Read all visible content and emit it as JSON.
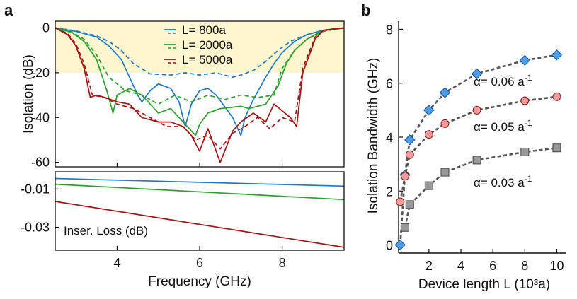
{
  "panels": {
    "a_label": "a",
    "b_label": "b"
  },
  "chart_data": [
    {
      "id": "isolation",
      "type": "line",
      "panel": "a",
      "ylabel": "Isolation (dB)",
      "xlim": [
        2.5,
        9.5
      ],
      "ylim": [
        -62,
        3
      ],
      "yticks": [
        0,
        -20,
        -40,
        -60
      ],
      "yticklabels": [
        "0",
        "-20",
        "-40",
        "-60"
      ],
      "shaded_band": [
        -20,
        3
      ],
      "shaded_color": "#fdf6cf",
      "legend": {
        "position": "top-center",
        "entries": [
          {
            "label": "L= 800a",
            "color": "#1f77c8"
          },
          {
            "label": "L= 2000a",
            "color": "#2ca02c"
          },
          {
            "label": "L= 5000a",
            "color": "#a31515"
          }
        ]
      },
      "series": [
        {
          "name": "L= 800a",
          "style": "solid",
          "color": "#1f77c8",
          "x": [
            2.5,
            3.0,
            3.5,
            3.8,
            4.1,
            4.3,
            4.5,
            4.6,
            4.8,
            5.0,
            5.3,
            5.5,
            5.65,
            5.8,
            6.0,
            6.2,
            6.4,
            6.6,
            6.8,
            7.0,
            7.1,
            7.3,
            7.6,
            7.8,
            8.0,
            8.3,
            8.6,
            9.0,
            9.3,
            9.5
          ],
          "y": [
            0,
            -1.5,
            -4,
            -8,
            -14,
            -22,
            -30,
            -33,
            -28,
            -25,
            -27,
            -33,
            -44,
            -34,
            -28,
            -27,
            -30,
            -35,
            -40,
            -48,
            -40,
            -32,
            -22,
            -16,
            -11,
            -6,
            -3,
            -1,
            -0.3,
            0
          ]
        },
        {
          "name": "L= 800a (dashed)",
          "style": "dashed",
          "color": "#1f77c8",
          "x": [
            2.5,
            3.0,
            3.5,
            3.8,
            4.1,
            4.4,
            4.8,
            5.3,
            5.65,
            6.0,
            6.4,
            6.8,
            7.0,
            7.3,
            7.6,
            7.9,
            8.2,
            8.6,
            9.0,
            9.5
          ],
          "y": [
            0,
            -1.3,
            -3.5,
            -6,
            -10,
            -16,
            -20.5,
            -21,
            -20,
            -21,
            -20,
            -22,
            -21,
            -19,
            -15,
            -10,
            -6,
            -3,
            -1,
            0
          ]
        },
        {
          "name": "L= 2000a",
          "style": "solid",
          "color": "#2ca02c",
          "x": [
            2.5,
            2.9,
            3.2,
            3.5,
            3.75,
            3.9,
            4.0,
            4.3,
            4.6,
            5.0,
            5.3,
            5.6,
            5.9,
            6.0,
            6.2,
            6.5,
            7.0,
            7.2,
            7.6,
            7.9,
            8.1,
            8.3,
            8.6,
            8.9,
            9.2,
            9.5
          ],
          "y": [
            0,
            -2,
            -6,
            -14,
            -28,
            -38,
            -30,
            -27,
            -30,
            -38,
            -36,
            -42,
            -48,
            -43,
            -38,
            -36,
            -35,
            -36,
            -34,
            -26,
            -16,
            -10,
            -5,
            -2,
            -0.5,
            0
          ]
        },
        {
          "name": "L= 2000a (dashed)",
          "style": "dashed",
          "color": "#2ca02c",
          "x": [
            2.5,
            2.9,
            3.2,
            3.5,
            3.8,
            4.2,
            4.6,
            5.0,
            5.4,
            5.8,
            6.2,
            6.6,
            7.0,
            7.4,
            7.8,
            8.0,
            8.3,
            8.6,
            9.0,
            9.5
          ],
          "y": [
            0,
            -1.8,
            -5,
            -12,
            -22,
            -28,
            -30,
            -34,
            -30,
            -33,
            -30,
            -32,
            -30,
            -31,
            -30,
            -18,
            -10,
            -5,
            -1.5,
            0
          ]
        },
        {
          "name": "L= 5000a",
          "style": "solid",
          "color": "#a31515",
          "x": [
            2.5,
            2.8,
            3.0,
            3.2,
            3.35,
            3.5,
            3.7,
            4.0,
            4.3,
            4.6,
            5.0,
            5.3,
            5.6,
            5.8,
            6.0,
            6.2,
            6.5,
            6.8,
            7.0,
            7.3,
            7.6,
            7.8,
            8.0,
            8.2,
            8.35,
            8.5,
            8.8,
            9.0,
            9.5
          ],
          "y": [
            0,
            -3,
            -8,
            -18,
            -31,
            -30,
            -31,
            -33,
            -34,
            -40,
            -42,
            -42,
            -44,
            -48,
            -55,
            -45,
            -60,
            -46,
            -42,
            -38,
            -42,
            -34,
            -37,
            -40,
            -44,
            -20,
            -5,
            -1,
            0
          ]
        },
        {
          "name": "L= 5000a (dashed)",
          "style": "dashed",
          "color": "#a31515",
          "x": [
            2.5,
            2.8,
            3.0,
            3.2,
            3.4,
            3.7,
            4.0,
            4.4,
            4.8,
            5.2,
            5.6,
            5.9,
            6.2,
            6.5,
            6.8,
            7.1,
            7.4,
            7.7,
            8.0,
            8.3,
            8.5,
            8.8,
            9.0,
            9.5
          ],
          "y": [
            0,
            -2.5,
            -7,
            -16,
            -30,
            -31,
            -34,
            -36,
            -40,
            -44,
            -44,
            -50,
            -48,
            -54,
            -47,
            -44,
            -40,
            -45,
            -40,
            -42,
            -18,
            -4,
            -1,
            0
          ]
        }
      ]
    },
    {
      "id": "insertion-loss",
      "type": "line",
      "panel": "a",
      "annotation": "Inser. Loss (dB)",
      "xlabel": "Frequency (GHz)",
      "xlim": [
        2.5,
        9.5
      ],
      "xticks": [
        4,
        6,
        8
      ],
      "xticklabels": [
        "4",
        "6",
        "8"
      ],
      "ylim": [
        -0.042,
        -0.001
      ],
      "yticks": [
        -0.01,
        -0.03
      ],
      "yticklabels": [
        "-0.01",
        "-0.03"
      ],
      "series": [
        {
          "name": "L= 800a",
          "color": "#1f77c8",
          "x": [
            2.5,
            9.5
          ],
          "y": [
            -0.0045,
            -0.0085
          ]
        },
        {
          "name": "L= 2000a",
          "color": "#2ca02c",
          "x": [
            2.5,
            9.5
          ],
          "y": [
            -0.0075,
            -0.0155
          ]
        },
        {
          "name": "L= 5000a",
          "color": "#a31515",
          "x": [
            2.5,
            9.5
          ],
          "y": [
            -0.0165,
            -0.0405
          ]
        }
      ]
    },
    {
      "id": "bandwidth",
      "type": "scatter",
      "panel": "b",
      "xlabel": "Device length L (10³a)",
      "ylabel": "Isolation Bandwidth (GHz)",
      "xlim": [
        0.1,
        10.6
      ],
      "ylim": [
        -0.3,
        8.3
      ],
      "xticks": [
        2,
        4,
        6,
        8,
        10
      ],
      "xticklabels": [
        "2",
        "4",
        "6",
        "8",
        "10"
      ],
      "yticks": [
        0,
        2,
        4,
        6,
        8
      ],
      "yticklabels": [
        "0",
        "2",
        "4",
        "6",
        "8"
      ],
      "series": [
        {
          "name": "α= 0.06 a-1",
          "marker": "diamond",
          "color": "#4d9de8",
          "x": [
            0.2,
            0.5,
            0.8,
            2.0,
            3.0,
            5.0,
            8.0,
            10.0
          ],
          "y": [
            0.0,
            2.6,
            3.9,
            5.0,
            5.65,
            6.35,
            6.85,
            7.05
          ]
        },
        {
          "name": "α= 0.05 a-1",
          "marker": "circle",
          "color": "#f59a9a",
          "x": [
            0.2,
            0.5,
            0.8,
            2.0,
            3.0,
            5.0,
            8.0,
            10.0
          ],
          "y": [
            1.6,
            2.55,
            3.35,
            4.1,
            4.5,
            5.0,
            5.35,
            5.5
          ]
        },
        {
          "name": "α= 0.03 a-1",
          "marker": "square",
          "color": "#999999",
          "x": [
            0.5,
            0.8,
            2.0,
            3.0,
            5.0,
            8.0,
            10.0
          ],
          "y": [
            0.65,
            1.5,
            2.2,
            2.7,
            3.15,
            3.45,
            3.6
          ]
        }
      ],
      "annotations": [
        {
          "base": "α= 0.06 a",
          "sup": "-1"
        },
        {
          "base": "α= 0.05 a",
          "sup": "-1"
        },
        {
          "base": "α= 0.03 a",
          "sup": "-1"
        }
      ]
    }
  ]
}
